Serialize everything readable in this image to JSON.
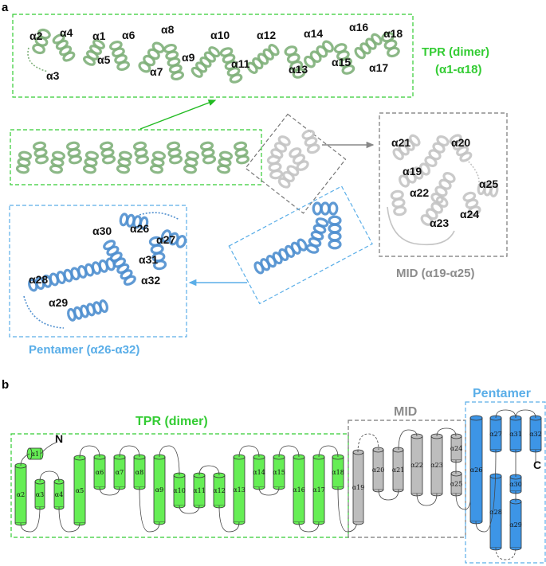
{
  "panels": {
    "a": "a",
    "b": "b"
  },
  "colors": {
    "tpr": "#33cc33",
    "tpr_ribbon": "#7fb07a",
    "mid": "#8c8c8c",
    "mid_ribbon": "#c4c4c4",
    "pentamer": "#5aaee8",
    "pentamer_ribbon": "#4f8fcf",
    "cyl_green": "#66ee55",
    "cyl_grey": "#bdbdbd",
    "cyl_blue": "#3d95e6"
  },
  "panel_a": {
    "tpr_title": "TPR (dimer)",
    "tpr_range": "(α1-α18)",
    "mid_title": "MID (α19-α25)",
    "pentamer_title": "Pentamer (α26-α32)",
    "tpr_helix_labels": [
      "α2",
      "α4",
      "α1",
      "α6",
      "α8",
      "α10",
      "α12",
      "α14",
      "α16",
      "α18",
      "α3",
      "α5",
      "α7",
      "α9",
      "α11",
      "α13",
      "α15",
      "α17"
    ],
    "mid_helix_labels": [
      "α21",
      "α20",
      "α19",
      "α22",
      "α25",
      "α24",
      "α23"
    ],
    "pentamer_helix_labels": [
      "α30",
      "α26",
      "α27",
      "α31",
      "α28",
      "α32",
      "α29"
    ]
  },
  "panel_b": {
    "tpr_title": "TPR (dimer)",
    "mid_title": "MID",
    "pentamer_title": "Pentamer",
    "n_term": "N",
    "c_term": "C",
    "tpr_helices": [
      "α1",
      "α2",
      "α3",
      "α4",
      "α5",
      "α6",
      "α7",
      "α8",
      "α9",
      "α10",
      "α11",
      "α12",
      "α13",
      "α14",
      "α15",
      "α16",
      "α17",
      "α18"
    ],
    "mid_helices": [
      "α19",
      "α20",
      "α21",
      "α22",
      "α23",
      "α24",
      "α25"
    ],
    "pentamer_helices": [
      "α26",
      "α27",
      "α28",
      "α29",
      "α30",
      "α31",
      "α32"
    ]
  }
}
